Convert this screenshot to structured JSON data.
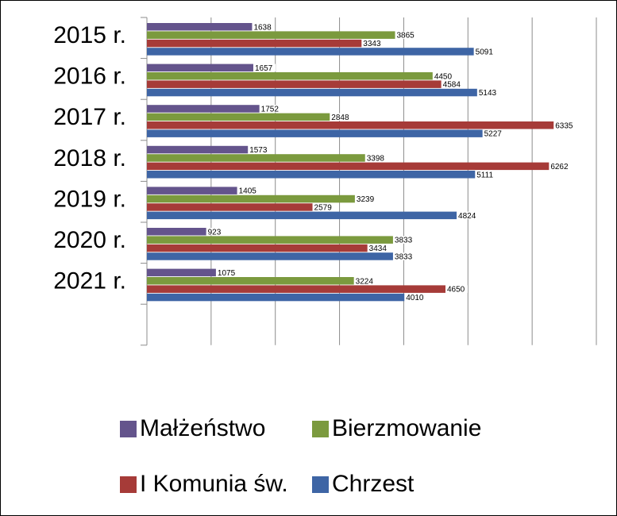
{
  "chart_data": {
    "type": "bar",
    "orientation": "horizontal",
    "categories": [
      "2015 r.",
      "2016 r.",
      "2017 r.",
      "2018 r.",
      "2019 r.",
      "2020 r.",
      "2021 r."
    ],
    "series": [
      {
        "name": "Małżeństwo",
        "color": "#64548c",
        "values": [
          1638,
          1657,
          1752,
          1573,
          1405,
          923,
          1075
        ]
      },
      {
        "name": "Bierzmowanie",
        "color": "#7b9a3e",
        "values": [
          3865,
          4450,
          2848,
          3398,
          3239,
          3833,
          3224
        ]
      },
      {
        "name": "I Komunia św.",
        "color": "#a63b38",
        "values": [
          3343,
          4584,
          6335,
          6262,
          2579,
          3434,
          4650
        ]
      },
      {
        "name": "Chrzest",
        "color": "#3e65a5",
        "values": [
          5091,
          5143,
          5227,
          5111,
          4824,
          3833,
          4010
        ]
      }
    ],
    "xlim": [
      0,
      7000
    ],
    "grid": true,
    "legend_position": "bottom",
    "data_labels": true
  }
}
